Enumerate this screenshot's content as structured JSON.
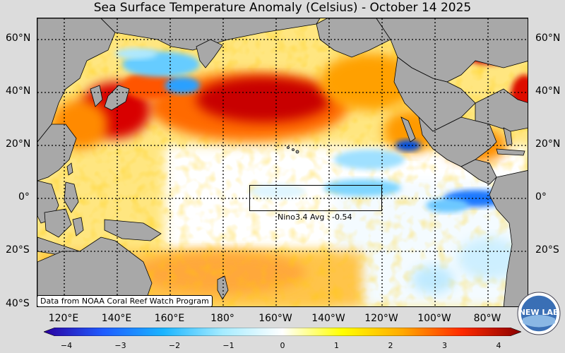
{
  "title": "Sea Surface Temperature Anomaly (Celsius) - October 14 2025",
  "lat_labels_left": [
    "60°N",
    "40°N",
    "20°N",
    "0°",
    "20°S",
    "40°S"
  ],
  "lat_labels_right": [
    "60°N",
    "40°N",
    "20°N",
    "0°",
    "20°S"
  ],
  "lon_labels": [
    "120°E",
    "140°E",
    "160°E",
    "180°",
    "160°W",
    "140°W",
    "120°W",
    "100°W",
    "80°W"
  ],
  "colorbar": {
    "ticks": [
      "−4",
      "−3",
      "−2",
      "−1",
      "0",
      "1",
      "2",
      "3",
      "4"
    ],
    "min": -4,
    "max": 4,
    "colors": [
      "#2a00a0",
      "#1f5cff",
      "#19b4ff",
      "#a6ecff",
      "#ffffff",
      "#ffff00",
      "#ffaa00",
      "#ff2a00",
      "#8a0000"
    ]
  },
  "nino": {
    "label": "Nino3.4 Avg : -0.54",
    "region": "Nino3.4",
    "avg": -0.54
  },
  "credit": "Data from NOAA Coral Reef Watch Program",
  "logo_text": "NEW LAB",
  "colors": {
    "land": "#a8a8a8",
    "background": "#dcdcdc",
    "warm_anomaly": "#cc0000",
    "cool_anomaly": "#19b4ff",
    "neutral": "#ffeaa0"
  }
}
